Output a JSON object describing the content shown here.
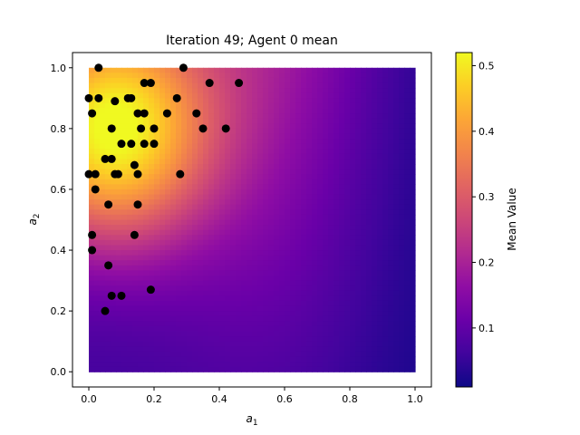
{
  "chart_data": {
    "type": "scatter",
    "title": "Iteration 49; Agent 0 mean",
    "xlabel": "a",
    "xlabel_sub": "1",
    "ylabel": "a",
    "ylabel_sub": "2",
    "xlim": [
      -0.05,
      1.05
    ],
    "ylim": [
      -0.05,
      1.05
    ],
    "xticks": [
      0.0,
      0.2,
      0.4,
      0.6,
      0.8,
      1.0
    ],
    "xtick_labels": [
      "0.0",
      "0.2",
      "0.4",
      "0.6",
      "0.8",
      "1.0"
    ],
    "yticks": [
      0.0,
      0.2,
      0.4,
      0.6,
      0.8,
      1.0
    ],
    "ytick_labels": [
      "0.0",
      "0.2",
      "0.4",
      "0.6",
      "0.8",
      "1.0"
    ],
    "grid": false,
    "heatmap": {
      "colormap": "plasma",
      "extent": [
        0,
        1,
        0,
        1
      ],
      "peak": [
        0.07,
        0.8
      ],
      "max_value": 0.52,
      "min_value": 0.01
    },
    "colorbar": {
      "label": "Mean Value",
      "vmin": 0.01,
      "vmax": 0.52,
      "ticks": [
        0.1,
        0.2,
        0.3,
        0.4,
        0.5
      ],
      "tick_labels": [
        "0.1",
        "0.2",
        "0.3",
        "0.4",
        "0.5"
      ]
    },
    "points": {
      "color": "#000000",
      "x": [
        0.03,
        0.29,
        0.0,
        0.03,
        0.12,
        0.13,
        0.17,
        0.19,
        0.37,
        0.46,
        0.27,
        0.08,
        0.01,
        0.15,
        0.17,
        0.24,
        0.33,
        0.07,
        0.16,
        0.2,
        0.35,
        0.42,
        0.1,
        0.13,
        0.17,
        0.2,
        0.05,
        0.07,
        0.14,
        0.0,
        0.02,
        0.08,
        0.09,
        0.15,
        0.28,
        0.02,
        0.06,
        0.15,
        0.01,
        0.14,
        0.01,
        0.06,
        0.07,
        0.1,
        0.19,
        0.05
      ],
      "y": [
        1.0,
        1.0,
        0.9,
        0.9,
        0.9,
        0.9,
        0.95,
        0.95,
        0.95,
        0.95,
        0.9,
        0.89,
        0.85,
        0.85,
        0.85,
        0.85,
        0.85,
        0.8,
        0.8,
        0.8,
        0.8,
        0.8,
        0.75,
        0.75,
        0.75,
        0.75,
        0.7,
        0.7,
        0.68,
        0.65,
        0.65,
        0.65,
        0.65,
        0.65,
        0.65,
        0.6,
        0.55,
        0.55,
        0.45,
        0.45,
        0.4,
        0.35,
        0.25,
        0.25,
        0.27,
        0.2
      ]
    }
  }
}
